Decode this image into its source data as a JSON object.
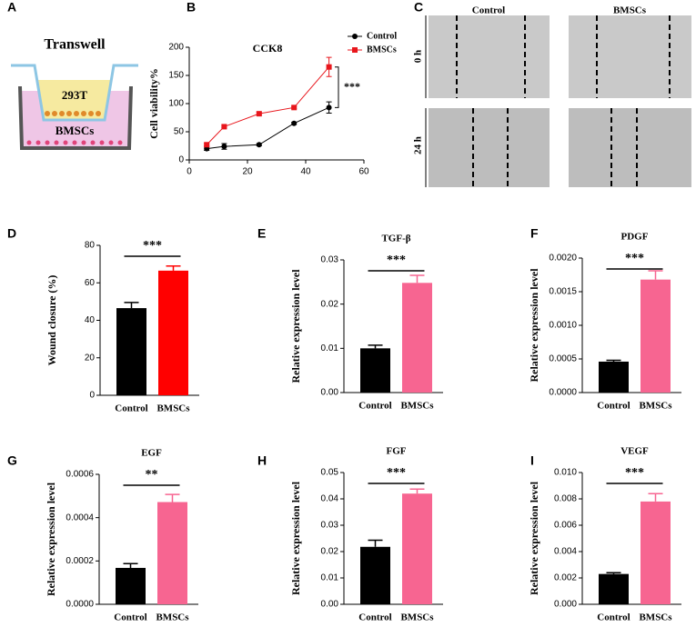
{
  "figure": {
    "panel_labels": [
      "A",
      "B",
      "C",
      "D",
      "E",
      "F",
      "G",
      "H",
      "I"
    ],
    "transwell": {
      "title": "Transwell",
      "upper": "293T",
      "lower": "BMSCs"
    },
    "scratch": {
      "columns": [
        "Control",
        "BMSCs"
      ],
      "rows": [
        "0 h",
        "24 h"
      ]
    }
  },
  "chart_data": [
    {
      "type": "line",
      "title": "CCK8",
      "ylabel": "Cell viability%",
      "x": [
        6,
        12,
        24,
        36,
        48
      ],
      "xlim": [
        0,
        60
      ],
      "xticks": [
        0,
        20,
        40,
        60
      ],
      "ylim": [
        0,
        200
      ],
      "yticks": [
        0,
        50,
        100,
        150,
        200
      ],
      "legend": "upper right",
      "annotation": "***",
      "series": [
        {
          "name": "Control",
          "color": "#000000",
          "marker": "circle",
          "values": [
            20,
            24,
            27,
            65,
            93
          ],
          "errors": [
            3,
            5,
            2,
            2,
            10
          ]
        },
        {
          "name": "BMSCs",
          "color": "#e8161c",
          "marker": "square",
          "values": [
            27,
            59,
            82,
            93,
            165
          ],
          "errors": [
            2,
            2,
            2,
            2,
            17
          ]
        }
      ]
    },
    {
      "type": "bar",
      "ylabel": "Wound closure (%)",
      "categories": [
        "Control",
        "BMSCs"
      ],
      "values": [
        46.5,
        66.5
      ],
      "errors": [
        3,
        2.5
      ],
      "colors": [
        "#000000",
        "#ff0000"
      ],
      "ylim": [
        0,
        80
      ],
      "yticks": [
        0,
        20,
        40,
        60,
        80
      ],
      "annotation": "***"
    },
    {
      "type": "bar",
      "title": "TGF-β",
      "ylabel": "Relative expression level",
      "categories": [
        "Control",
        "BMSCs"
      ],
      "values": [
        0.01,
        0.0248
      ],
      "errors": [
        0.0007,
        0.0017
      ],
      "colors": [
        "#000000",
        "#f76591"
      ],
      "ylim": [
        0,
        0.03
      ],
      "yticks": [
        {
          "value": 0,
          "label": "0.00"
        },
        0.01,
        0.02,
        0.03
      ],
      "annotation": "***"
    },
    {
      "type": "bar",
      "title": "PDGF",
      "ylabel": "Relative expression level",
      "categories": [
        "Control",
        "BMSCs"
      ],
      "values": [
        0.00046,
        0.00168
      ],
      "errors": [
        2e-05,
        0.00013
      ],
      "colors": [
        "#000000",
        "#f76591"
      ],
      "ylim": [
        0,
        0.002
      ],
      "yticks": [
        {
          "value": 0,
          "label": "0.0000"
        },
        {
          "value": 0.0005,
          "label": "0.0005"
        },
        {
          "value": 0.001,
          "label": "0.0010"
        },
        {
          "value": 0.0015,
          "label": "0.0015"
        },
        {
          "value": 0.002,
          "label": "0.0020"
        }
      ],
      "annotation": "***"
    },
    {
      "type": "bar",
      "title": "EGF",
      "ylabel": "Relative expression level",
      "categories": [
        "Control",
        "BMSCs"
      ],
      "values": [
        0.000168,
        0.000472
      ],
      "errors": [
        2e-05,
        3.5e-05
      ],
      "colors": [
        "#000000",
        "#f76591"
      ],
      "ylim": [
        0,
        0.0006
      ],
      "yticks": [
        {
          "value": 0,
          "label": "0.0000"
        },
        {
          "value": 0.0002,
          "label": "0.0002"
        },
        {
          "value": 0.0004,
          "label": "0.0004"
        },
        {
          "value": 0.0006,
          "label": "0.0006"
        }
      ],
      "annotation": "**"
    },
    {
      "type": "bar",
      "title": "FGF",
      "ylabel": "Relative expression level",
      "categories": [
        "Control",
        "BMSCs"
      ],
      "values": [
        0.0218,
        0.042
      ],
      "errors": [
        0.0025,
        0.0017
      ],
      "colors": [
        "#000000",
        "#f76591"
      ],
      "ylim": [
        0,
        0.05
      ],
      "yticks": [
        {
          "value": 0,
          "label": "0.00"
        },
        0.01,
        0.02,
        0.03,
        0.04,
        0.05
      ],
      "annotation": "***"
    },
    {
      "type": "bar",
      "title": "VEGF",
      "ylabel": "Relative expression level",
      "categories": [
        "Control",
        "BMSCs"
      ],
      "values": [
        0.0023,
        0.0078
      ],
      "errors": [
        0.0001,
        0.0006
      ],
      "colors": [
        "#000000",
        "#f76591"
      ],
      "ylim": [
        0,
        0.01
      ],
      "yticks": [
        {
          "value": 0,
          "label": "0.000"
        },
        {
          "value": 0.002,
          "label": "0.002"
        },
        {
          "value": 0.004,
          "label": "0.004"
        },
        {
          "value": 0.006,
          "label": "0.006"
        },
        {
          "value": 0.008,
          "label": "0.008"
        },
        {
          "value": 0.01,
          "label": "0.010"
        }
      ],
      "annotation": "***"
    }
  ]
}
